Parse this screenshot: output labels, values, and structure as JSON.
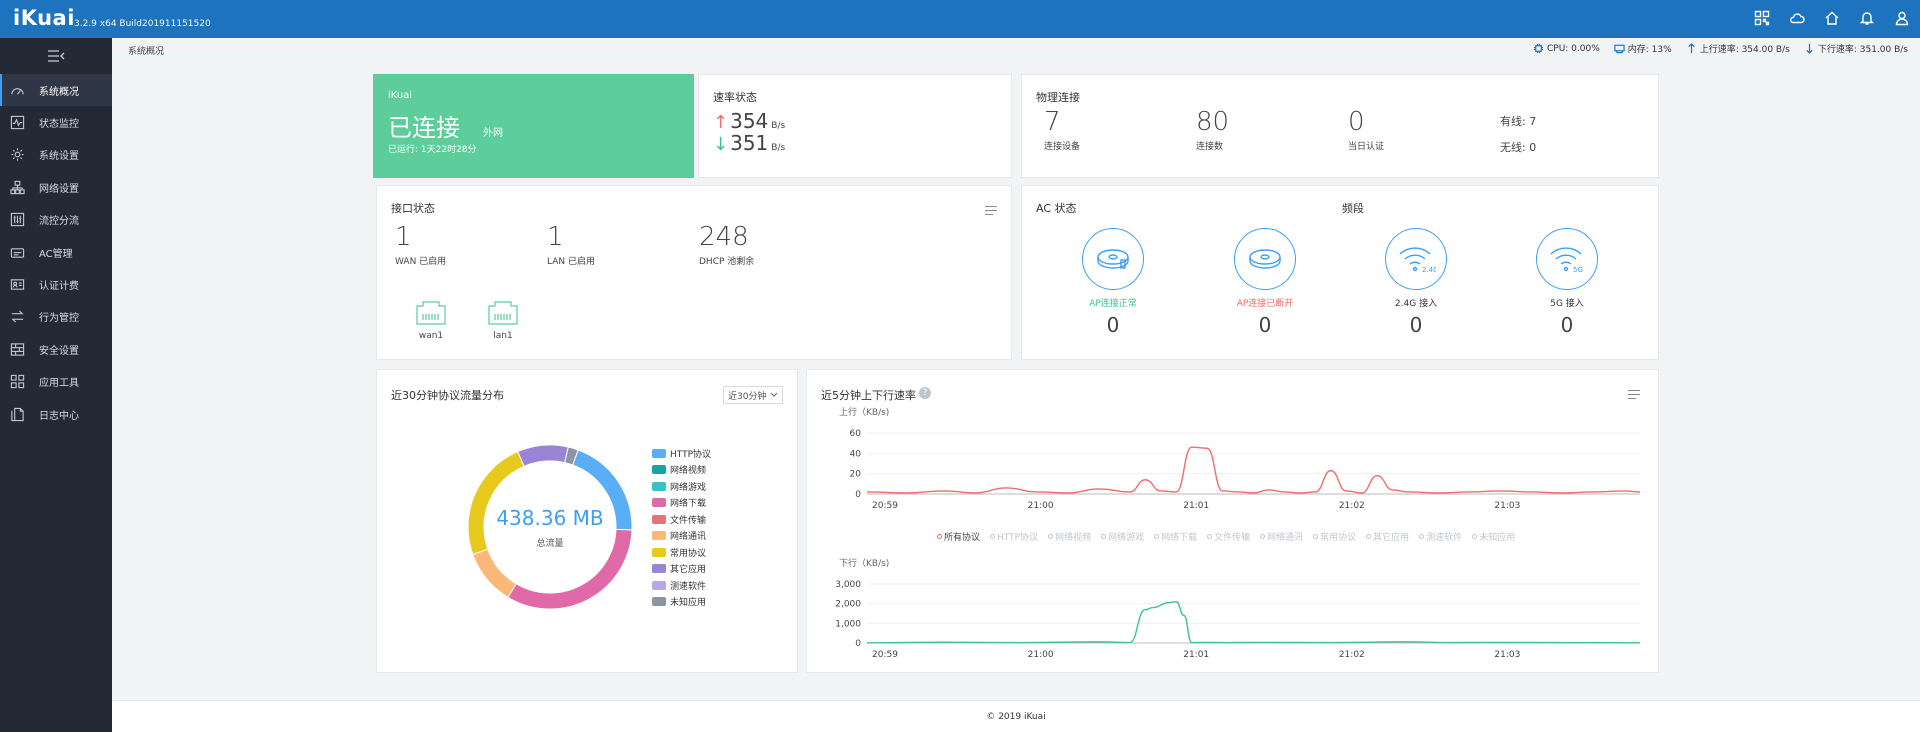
{
  "app": {
    "logo": "iKuai",
    "version": "3.2.9 x64 Build201911151520"
  },
  "breadcrumb": "系统概况",
  "sys_stats": {
    "cpu": "CPU: 0.00%",
    "memory": "内存: 13%",
    "upload": "上行速率: 354.00 B/s",
    "download": "下行速率: 351.00 B/s"
  },
  "sidebar": {
    "items": [
      {
        "label": "系统概况",
        "icon": "dashboard-icon"
      },
      {
        "label": "状态监控",
        "icon": "monitor-icon"
      },
      {
        "label": "系统设置",
        "icon": "gear-icon"
      },
      {
        "label": "网络设置",
        "icon": "network-icon"
      },
      {
        "label": "流控分流",
        "icon": "sliders-icon"
      },
      {
        "label": "AC管理",
        "icon": "router-icon"
      },
      {
        "label": "认证计费",
        "icon": "id-card-icon"
      },
      {
        "label": "行为管控",
        "icon": "swap-icon"
      },
      {
        "label": "安全设置",
        "icon": "firewall-icon"
      },
      {
        "label": "应用工具",
        "icon": "apps-icon"
      },
      {
        "label": "日志中心",
        "icon": "log-icon"
      }
    ]
  },
  "ikuai_card": {
    "label": "iKuai",
    "status": "已连接",
    "sub": "外网",
    "uptime": "已运行: 1天22时28分"
  },
  "speed_card": {
    "title": "速率状态",
    "up_value": "354",
    "down_value": "351",
    "unit": "B/s"
  },
  "phys_card": {
    "title": "物理连接",
    "devices": {
      "value": "7",
      "label": "连接设备"
    },
    "connections": {
      "value": "80",
      "label": "连接数"
    },
    "auth": {
      "value": "0",
      "label": "当日认证"
    },
    "wired": "有线: 7",
    "wireless": "无线: 0"
  },
  "iface_card": {
    "title": "接口状态",
    "wan": {
      "value": "1",
      "label": "WAN 已启用"
    },
    "lan": {
      "value": "1",
      "label": "LAN 已启用"
    },
    "dhcp": {
      "value": "248",
      "label": "DHCP 池剩余"
    },
    "ports": [
      "wan1",
      "lan1"
    ]
  },
  "ac_card": {
    "title": "AC 状态",
    "band_title": "频段",
    "items": [
      {
        "label": "AP连接正常",
        "count": "0",
        "color": "#3cc490"
      },
      {
        "label": "AP连接已断开",
        "count": "0",
        "color": "#f26b6b"
      },
      {
        "label": "2.4G 接入",
        "count": "0",
        "color": "#333333",
        "badge": "2.4G"
      },
      {
        "label": "5G 接入",
        "count": "0",
        "color": "#333333",
        "badge": "5G"
      }
    ]
  },
  "proto_card": {
    "title": "近30分钟协议流量分布",
    "range_select": "近30分钟",
    "total": "438.36 MB",
    "total_label": "总流量"
  },
  "rate_card": {
    "title": "近5分钟上下行速率",
    "legend": [
      "所有协议",
      "HTTP协议",
      "网络视频",
      "网络游戏",
      "网络下载",
      "文件传输",
      "网络通讯",
      "常用协议",
      "其它应用",
      "测速软件",
      "未知应用"
    ]
  },
  "chart_data": [
    {
      "type": "pie",
      "title": "近30分钟协议流量分布",
      "total": "438.36 MB",
      "categories": [
        "HTTP协议",
        "网络视频",
        "网络游戏",
        "网络下载",
        "文件传输",
        "网络通讯",
        "常用协议",
        "其它应用",
        "测速软件",
        "未知应用"
      ],
      "colors": [
        "#5aaef5",
        "#1aa3a3",
        "#35c3c8",
        "#e06aa8",
        "#e8717a",
        "#fbb878",
        "#e8c91d",
        "#9a84d6",
        "#b9a7e8",
        "#8c94a6"
      ],
      "values": [
        20,
        0,
        0,
        33,
        0,
        11,
        24,
        10,
        0,
        2
      ],
      "legend": "right"
    },
    {
      "type": "line",
      "ylabel": "上行（KB/s)",
      "x_ticks": [
        "20:59",
        "21:00",
        "21:01",
        "21:02",
        "21:03"
      ],
      "ylim": [
        0,
        60
      ],
      "y_ticks": [
        0,
        20,
        40,
        60
      ],
      "series": [
        {
          "name": "所有协议",
          "color": "#f26b6b",
          "x": [
            0,
            5,
            10,
            14,
            18,
            22,
            26,
            30,
            34,
            36,
            38,
            40,
            42,
            44,
            46,
            48,
            50,
            52,
            54,
            56,
            58,
            60,
            62,
            64,
            66,
            68,
            70,
            74,
            78,
            82,
            86,
            90,
            94,
            98,
            100
          ],
          "y": [
            2,
            1,
            3,
            1,
            6,
            2,
            1,
            5,
            2,
            14,
            3,
            2,
            46,
            45,
            3,
            2,
            1,
            4,
            2,
            1,
            2,
            23,
            3,
            1,
            18,
            4,
            2,
            1,
            2,
            3,
            2,
            1,
            2,
            3,
            2
          ]
        }
      ]
    },
    {
      "type": "line",
      "ylabel": "下行（KB/s)",
      "x_ticks": [
        "20:59",
        "21:00",
        "21:01",
        "21:02",
        "21:03"
      ],
      "ylim": [
        0,
        3000
      ],
      "y_ticks": [
        "0",
        "1,000",
        "2,000",
        "3,000"
      ],
      "series": [
        {
          "name": "所有协议",
          "color": "#3cc490",
          "x": [
            0,
            10,
            20,
            30,
            34,
            36,
            37,
            39,
            40,
            41,
            42,
            44,
            46,
            50,
            60,
            70,
            75,
            80,
            90,
            100
          ],
          "y": [
            10,
            40,
            20,
            60,
            20,
            1700,
            1800,
            2050,
            2100,
            1400,
            20,
            30,
            20,
            30,
            20,
            60,
            20,
            30,
            20,
            10
          ]
        }
      ]
    }
  ],
  "footer": "© 2019 iKuai"
}
